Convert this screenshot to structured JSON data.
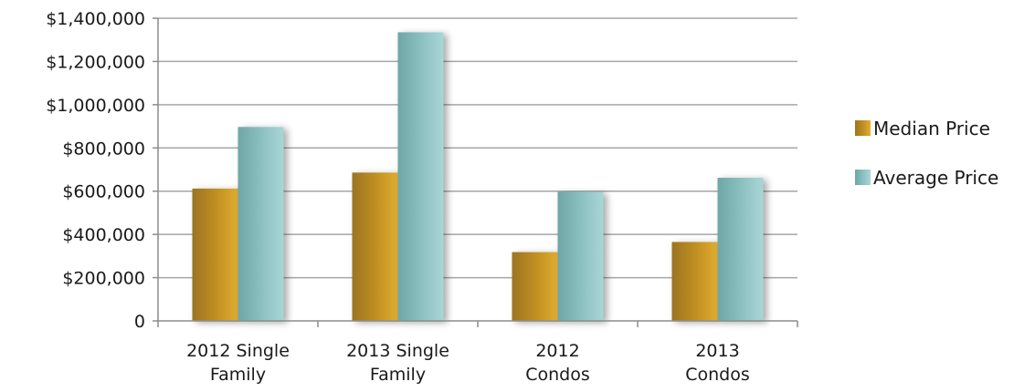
{
  "chart_data": {
    "type": "bar",
    "categories": [
      [
        "2012 Single",
        "Family"
      ],
      [
        "2013 Single",
        "Family"
      ],
      [
        "2012",
        "Condos"
      ],
      [
        "2013",
        "Condos"
      ]
    ],
    "series": [
      {
        "name": "Median Price",
        "values": [
          612000,
          686000,
          318000,
          365000
        ],
        "color": "#c2901f"
      },
      {
        "name": "Average Price",
        "values": [
          897000,
          1335000,
          597000,
          662000
        ],
        "color": "#8ec2c2"
      }
    ],
    "y_ticks": [
      0,
      200000,
      400000,
      600000,
      800000,
      1000000,
      1200000,
      1400000
    ],
    "y_tick_labels": [
      "0",
      "$200,000",
      "$400,000",
      "$600,000",
      "$800,000",
      "$1,000,000",
      "$1,200,000",
      "$1,400,000"
    ],
    "ylim": [
      0,
      1400000
    ],
    "grid": true,
    "legend_position": "right"
  }
}
